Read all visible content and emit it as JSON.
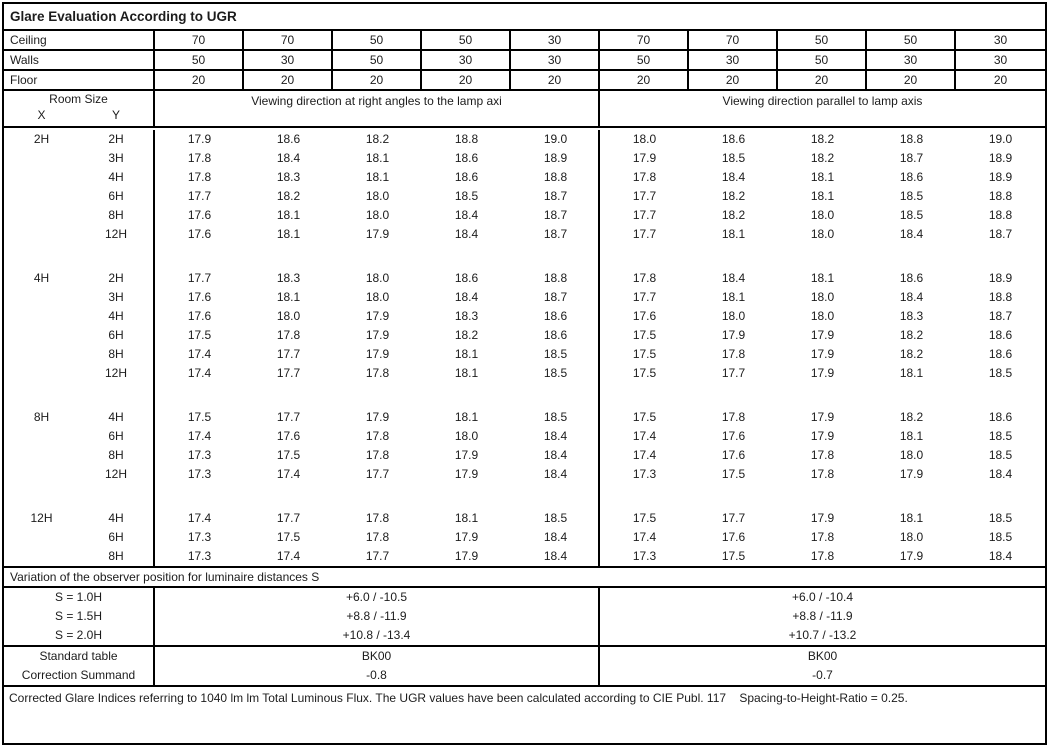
{
  "title": "Glare Evaluation According to UGR",
  "surfaces": {
    "rows": [
      {
        "label": "Ceiling",
        "values": [
          "70",
          "70",
          "50",
          "50",
          "30",
          "70",
          "70",
          "50",
          "50",
          "30"
        ]
      },
      {
        "label": "Walls",
        "values": [
          "50",
          "30",
          "50",
          "30",
          "30",
          "50",
          "30",
          "50",
          "30",
          "30"
        ]
      },
      {
        "label": "Floor",
        "values": [
          "20",
          "20",
          "20",
          "20",
          "20",
          "20",
          "20",
          "20",
          "20",
          "20"
        ]
      }
    ]
  },
  "header": {
    "room_size_label": "Room Size",
    "x_label": "X",
    "y_label": "Y",
    "left_heading": "Viewing direction at right angles to the lamp axi",
    "right_heading": "Viewing direction parallel to lamp axis"
  },
  "ugr_table": {
    "blocks": [
      {
        "x": "2H",
        "rows": [
          {
            "y": "2H",
            "left": [
              "17.9",
              "18.6",
              "18.2",
              "18.8",
              "19.0"
            ],
            "right": [
              "18.0",
              "18.6",
              "18.2",
              "18.8",
              "19.0"
            ]
          },
          {
            "y": "3H",
            "left": [
              "17.8",
              "18.4",
              "18.1",
              "18.6",
              "18.9"
            ],
            "right": [
              "17.9",
              "18.5",
              "18.2",
              "18.7",
              "18.9"
            ]
          },
          {
            "y": "4H",
            "left": [
              "17.8",
              "18.3",
              "18.1",
              "18.6",
              "18.8"
            ],
            "right": [
              "17.8",
              "18.4",
              "18.1",
              "18.6",
              "18.9"
            ]
          },
          {
            "y": "6H",
            "left": [
              "17.7",
              "18.2",
              "18.0",
              "18.5",
              "18.7"
            ],
            "right": [
              "17.7",
              "18.2",
              "18.1",
              "18.5",
              "18.8"
            ]
          },
          {
            "y": "8H",
            "left": [
              "17.6",
              "18.1",
              "18.0",
              "18.4",
              "18.7"
            ],
            "right": [
              "17.7",
              "18.2",
              "18.0",
              "18.5",
              "18.8"
            ]
          },
          {
            "y": "12H",
            "left": [
              "17.6",
              "18.1",
              "17.9",
              "18.4",
              "18.7"
            ],
            "right": [
              "17.7",
              "18.1",
              "18.0",
              "18.4",
              "18.7"
            ]
          }
        ]
      },
      {
        "x": "4H",
        "rows": [
          {
            "y": "2H",
            "left": [
              "17.7",
              "18.3",
              "18.0",
              "18.6",
              "18.8"
            ],
            "right": [
              "17.8",
              "18.4",
              "18.1",
              "18.6",
              "18.9"
            ]
          },
          {
            "y": "3H",
            "left": [
              "17.6",
              "18.1",
              "18.0",
              "18.4",
              "18.7"
            ],
            "right": [
              "17.7",
              "18.1",
              "18.0",
              "18.4",
              "18.8"
            ]
          },
          {
            "y": "4H",
            "left": [
              "17.6",
              "18.0",
              "17.9",
              "18.3",
              "18.6"
            ],
            "right": [
              "17.6",
              "18.0",
              "18.0",
              "18.3",
              "18.7"
            ]
          },
          {
            "y": "6H",
            "left": [
              "17.5",
              "17.8",
              "17.9",
              "18.2",
              "18.6"
            ],
            "right": [
              "17.5",
              "17.9",
              "17.9",
              "18.2",
              "18.6"
            ]
          },
          {
            "y": "8H",
            "left": [
              "17.4",
              "17.7",
              "17.9",
              "18.1",
              "18.5"
            ],
            "right": [
              "17.5",
              "17.8",
              "17.9",
              "18.2",
              "18.6"
            ]
          },
          {
            "y": "12H",
            "left": [
              "17.4",
              "17.7",
              "17.8",
              "18.1",
              "18.5"
            ],
            "right": [
              "17.5",
              "17.7",
              "17.9",
              "18.1",
              "18.5"
            ]
          }
        ]
      },
      {
        "x": "8H",
        "rows": [
          {
            "y": "4H",
            "left": [
              "17.5",
              "17.7",
              "17.9",
              "18.1",
              "18.5"
            ],
            "right": [
              "17.5",
              "17.8",
              "17.9",
              "18.2",
              "18.6"
            ]
          },
          {
            "y": "6H",
            "left": [
              "17.4",
              "17.6",
              "17.8",
              "18.0",
              "18.4"
            ],
            "right": [
              "17.4",
              "17.6",
              "17.9",
              "18.1",
              "18.5"
            ]
          },
          {
            "y": "8H",
            "left": [
              "17.3",
              "17.5",
              "17.8",
              "17.9",
              "18.4"
            ],
            "right": [
              "17.4",
              "17.6",
              "17.8",
              "18.0",
              "18.5"
            ]
          },
          {
            "y": "12H",
            "left": [
              "17.3",
              "17.4",
              "17.7",
              "17.9",
              "18.4"
            ],
            "right": [
              "17.3",
              "17.5",
              "17.8",
              "17.9",
              "18.4"
            ]
          }
        ]
      },
      {
        "x": "12H",
        "rows": [
          {
            "y": "4H",
            "left": [
              "17.4",
              "17.7",
              "17.8",
              "18.1",
              "18.5"
            ],
            "right": [
              "17.5",
              "17.7",
              "17.9",
              "18.1",
              "18.5"
            ]
          },
          {
            "y": "6H",
            "left": [
              "17.3",
              "17.5",
              "17.8",
              "17.9",
              "18.4"
            ],
            "right": [
              "17.4",
              "17.6",
              "17.8",
              "18.0",
              "18.5"
            ]
          },
          {
            "y": "8H",
            "left": [
              "17.3",
              "17.4",
              "17.7",
              "17.9",
              "18.4"
            ],
            "right": [
              "17.3",
              "17.5",
              "17.8",
              "17.9",
              "18.4"
            ]
          }
        ]
      }
    ]
  },
  "variation": {
    "heading": "Variation of the observer position for luminaire distances S",
    "rows": [
      {
        "label": "S = 1.0H",
        "left": "+6.0 / -10.5",
        "right": "+6.0 / -10.4"
      },
      {
        "label": "S = 1.5H",
        "left": "+8.8 / -11.9",
        "right": "+8.8 / -11.9"
      },
      {
        "label": "S = 2.0H",
        "left": "+10.8 / -13.4",
        "right": "+10.7 / -13.2"
      }
    ]
  },
  "summary": {
    "rows": [
      {
        "label": "Standard table",
        "left": "BK00",
        "right": "BK00"
      },
      {
        "label": "Correction Summand",
        "left": "-0.8",
        "right": "-0.7"
      }
    ]
  },
  "footer": {
    "text": "Corrected Glare Indices referring to 1040 lm lm Total Luminous Flux. The UGR values have been calculated according to CIE Publ. 117    Spacing-to-Height-Ratio = 0.25."
  }
}
